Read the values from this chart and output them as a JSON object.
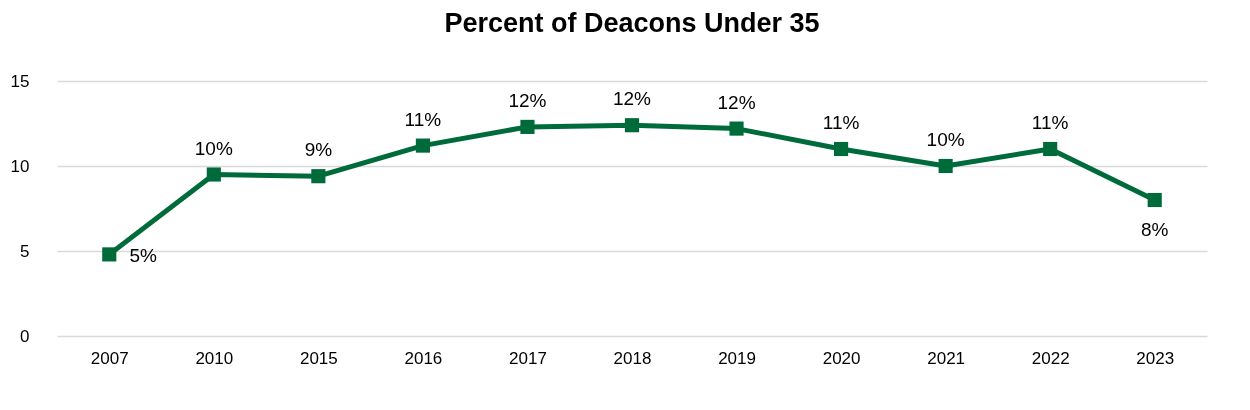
{
  "chart_data": {
    "type": "line",
    "title": "Percent of Deacons Under 35",
    "categories": [
      "2007",
      "2010",
      "2015",
      "2016",
      "2017",
      "2018",
      "2019",
      "2020",
      "2021",
      "2022",
      "2023"
    ],
    "series": [
      {
        "color": "#006b3a",
        "values": [
          4.8,
          9.5,
          9.4,
          11.2,
          12.3,
          12.4,
          12.2,
          11.0,
          10.0,
          11.0,
          8.0
        ],
        "value_labels": [
          "5%",
          "10%",
          "9%",
          "11%",
          "12%",
          "12%",
          "12%",
          "11%",
          "10%",
          "11%",
          "8%"
        ]
      }
    ],
    "ylim": [
      0,
      15
    ],
    "yticks": [
      0,
      5,
      10,
      15
    ],
    "grid": "y",
    "marker": "square",
    "line_style": "solid",
    "legend": false
  }
}
